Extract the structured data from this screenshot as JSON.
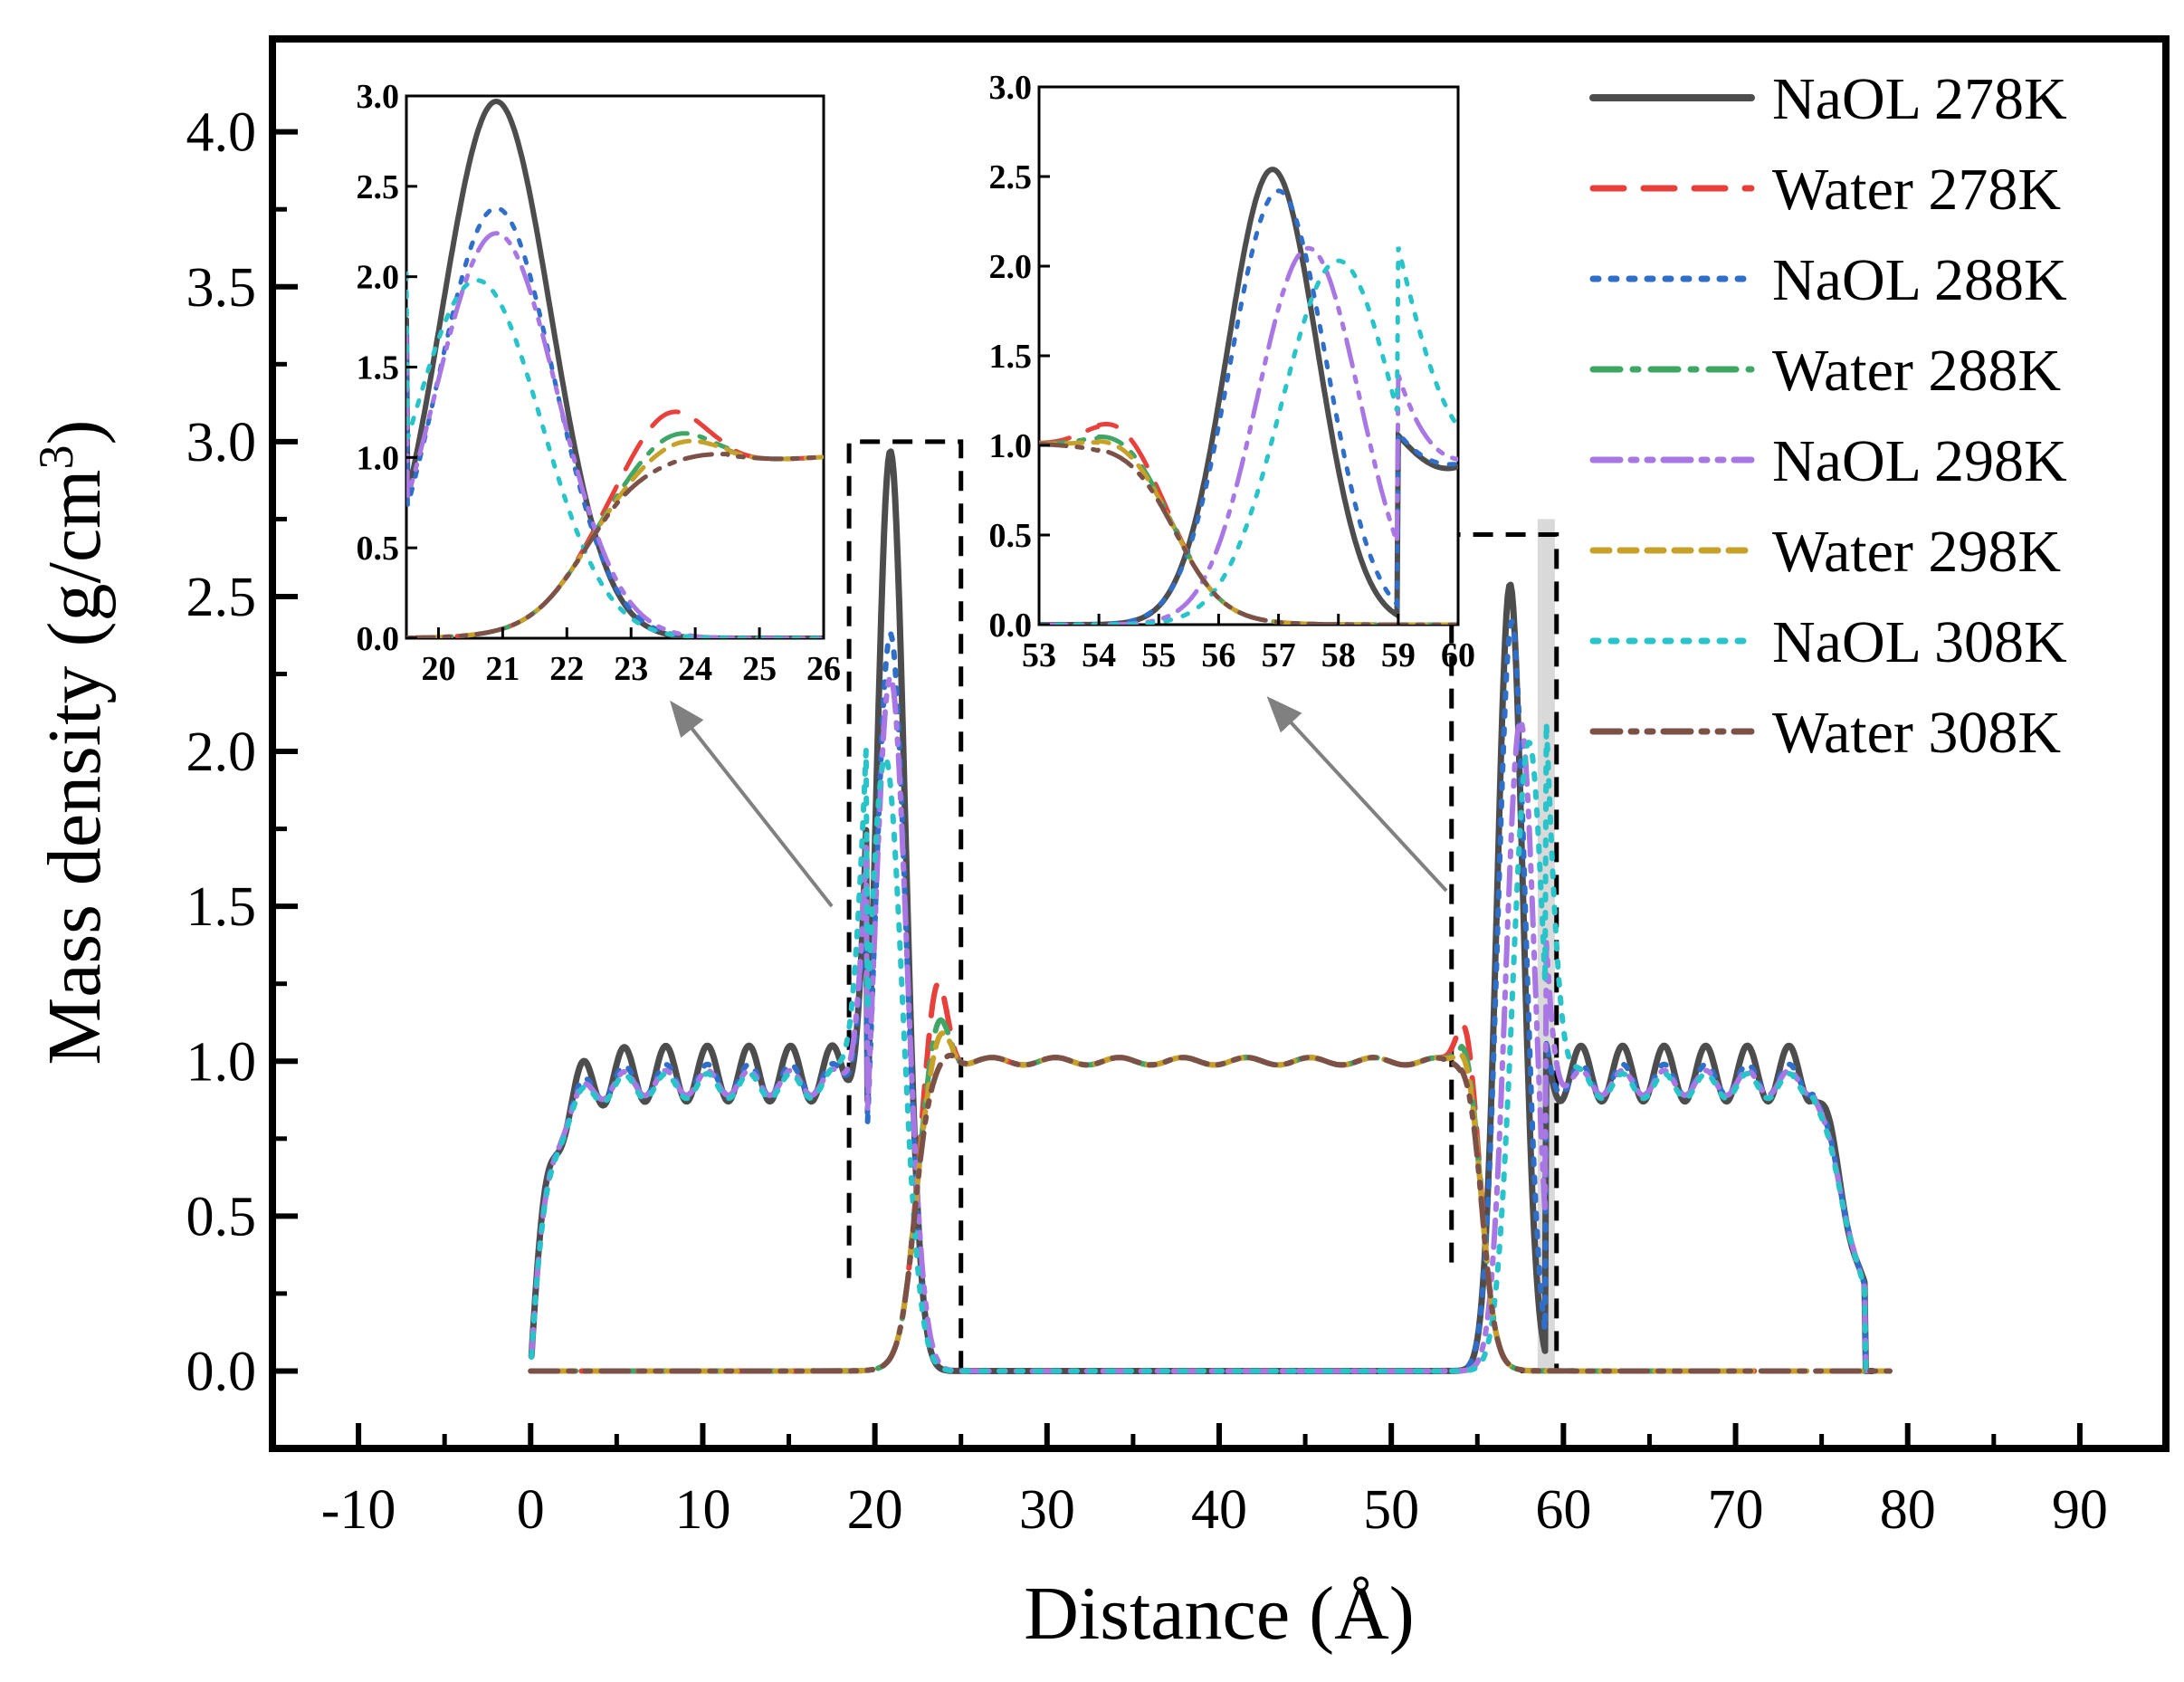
{
  "chart_data": {
    "type": "line",
    "xlabel": "Distance (Å)",
    "ylabel_main": "Mass density (g/cm",
    "ylabel_sup": "3",
    "ylabel_tail": ")",
    "xlim": [
      -15,
      95
    ],
    "ylim": [
      -0.25,
      4.3
    ],
    "xticks": [
      -10,
      0,
      10,
      20,
      30,
      40,
      50,
      60,
      70,
      80,
      90
    ],
    "yticks": [
      0.0,
      0.5,
      1.0,
      1.5,
      2.0,
      2.5,
      3.0,
      3.5,
      4.0
    ],
    "xtick_labels": [
      "-10",
      "0",
      "10",
      "20",
      "30",
      "40",
      "50",
      "60",
      "70",
      "80",
      "90"
    ],
    "ytick_labels": [
      "0.0",
      "0.5",
      "1.0",
      "1.5",
      "2.0",
      "2.5",
      "3.0",
      "3.5",
      "4.0"
    ],
    "series": [
      {
        "name": "NaOL 278K",
        "color": "#4d4d4d",
        "dash": "solid",
        "kind": "naol",
        "peakL": 2.97,
        "posL": 20.9,
        "wL": 0.85,
        "peakR": 2.54,
        "posR": 56.9,
        "wR": 0.75,
        "plateau": 0.96,
        "osc": 0.09
      },
      {
        "name": "Water 278K",
        "color": "#e8403b",
        "dash": "dash",
        "kind": "water",
        "bump": 1.3,
        "bumpPos": 23.6
      },
      {
        "name": "NaOL 288K",
        "color": "#2f6fc9",
        "dash": "dot",
        "kind": "naol",
        "peakL": 2.38,
        "posL": 20.9,
        "wL": 0.9,
        "peakR": 2.42,
        "posR": 57.0,
        "wR": 0.8,
        "plateau": 0.94,
        "osc": 0.05
      },
      {
        "name": "Water 288K",
        "color": "#3fa665",
        "dash": "dashdot",
        "kind": "water",
        "bump": 1.17,
        "bumpPos": 23.7
      },
      {
        "name": "NaOL 298K",
        "color": "#a877e3",
        "dash": "dashdotdot",
        "kind": "naol",
        "peakL": 2.24,
        "posL": 20.9,
        "wL": 0.95,
        "peakR": 2.1,
        "posR": 57.5,
        "wR": 0.85,
        "plateau": 0.93,
        "osc": 0.04
      },
      {
        "name": "Water 298K",
        "color": "#c8a12a",
        "dash": "shortdash",
        "kind": "water",
        "bump": 1.12,
        "bumpPos": 23.8
      },
      {
        "name": "NaOL 308K",
        "color": "#29c4c9",
        "dash": "dot",
        "kind": "naol",
        "peakL": 1.98,
        "posL": 20.6,
        "wL": 1.0,
        "peakR": 2.03,
        "posR": 58.0,
        "wR": 0.95,
        "plateau": 0.92,
        "osc": 0.04
      },
      {
        "name": "Water 308K",
        "color": "#7b5148",
        "dash": "dashdotdot",
        "kind": "water",
        "bump": 1.03,
        "bumpPos": 24.2
      }
    ],
    "insets": [
      {
        "xlim": [
          19.5,
          26
        ],
        "ylim": [
          0,
          3.0
        ],
        "xticks": [
          20,
          21,
          22,
          23,
          24,
          25,
          26
        ],
        "yticks": [
          0.0,
          0.5,
          1.0,
          1.5,
          2.0,
          2.5,
          3.0
        ],
        "xtick_labels": [
          "20",
          "21",
          "22",
          "23",
          "24",
          "25",
          "26"
        ],
        "ytick_labels": [
          "0.0",
          "0.5",
          "1.0",
          "1.5",
          "2.0",
          "2.5",
          "3.0"
        ]
      },
      {
        "xlim": [
          53,
          60
        ],
        "ylim": [
          0,
          3.0
        ],
        "xticks": [
          53,
          54,
          55,
          56,
          57,
          58,
          59,
          60
        ],
        "yticks": [
          0.0,
          0.5,
          1.0,
          1.5,
          2.0,
          2.5,
          3.0
        ],
        "xtick_labels": [
          "53",
          "54",
          "55",
          "56",
          "57",
          "58",
          "59",
          "60"
        ],
        "ytick_labels": [
          "0.0",
          "0.5",
          "1.0",
          "1.5",
          "2.0",
          "2.5",
          "3.0"
        ]
      }
    ]
  }
}
